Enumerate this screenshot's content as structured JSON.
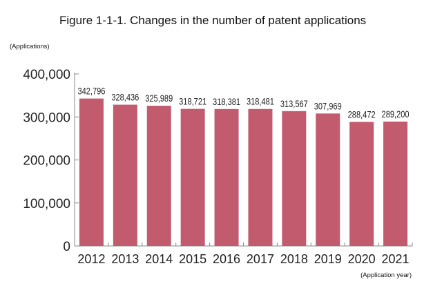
{
  "chart_data": {
    "type": "bar",
    "title": "Figure 1-1-1. Changes in the number of patent applications",
    "ylabel": "(Applications)",
    "xlabel": "(Application year)",
    "categories": [
      "2012",
      "2013",
      "2014",
      "2015",
      "2016",
      "2017",
      "2018",
      "2019",
      "2020",
      "2021"
    ],
    "values": [
      342796,
      328436,
      325989,
      318721,
      318381,
      318481,
      313567,
      307969,
      288472,
      289200
    ],
    "data_labels": [
      "342,796",
      "328,436",
      "325,989",
      "318,721",
      "318,381",
      "318,481",
      "313,567",
      "307,969",
      "288,472",
      "289,200"
    ],
    "ylim": [
      0,
      400000
    ],
    "yticks": [
      0,
      100000,
      200000,
      300000,
      400000
    ],
    "ytick_labels": [
      "0",
      "100,000",
      "200,000",
      "300,000",
      "400,000"
    ],
    "grid": false,
    "bar_color": "#c25b6e"
  }
}
